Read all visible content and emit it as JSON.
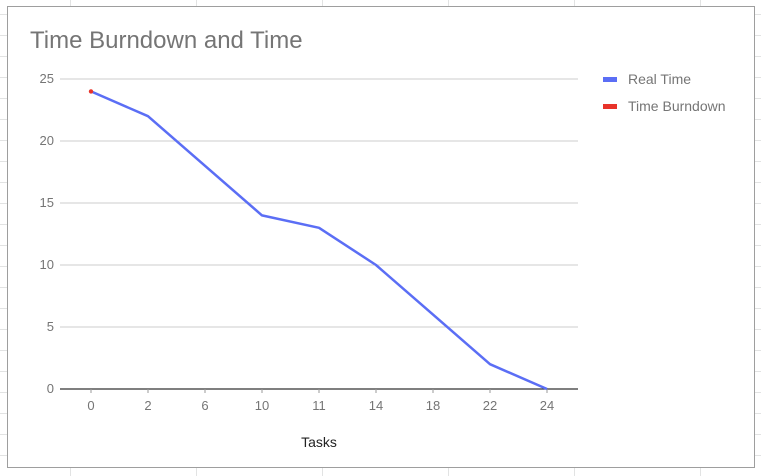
{
  "chart_data": {
    "type": "line",
    "title": "Time Burndown and Time",
    "xlabel": "Tasks",
    "ylabel": "",
    "categories": [
      "0",
      "2",
      "6",
      "10",
      "11",
      "14",
      "18",
      "22",
      "24"
    ],
    "ylim": [
      0,
      25
    ],
    "yticks": [
      "0",
      "5",
      "10",
      "15",
      "20",
      "25"
    ],
    "grid": true,
    "legend_position": "right",
    "series": [
      {
        "name": "Real Time",
        "color": "#5b6ef5",
        "values": [
          24,
          22,
          18,
          14,
          13,
          10,
          6,
          2,
          0
        ]
      },
      {
        "name": "Time Burndown",
        "color": "#e8332a",
        "values": [
          24,
          null,
          null,
          null,
          null,
          null,
          null,
          null,
          null
        ]
      }
    ]
  }
}
